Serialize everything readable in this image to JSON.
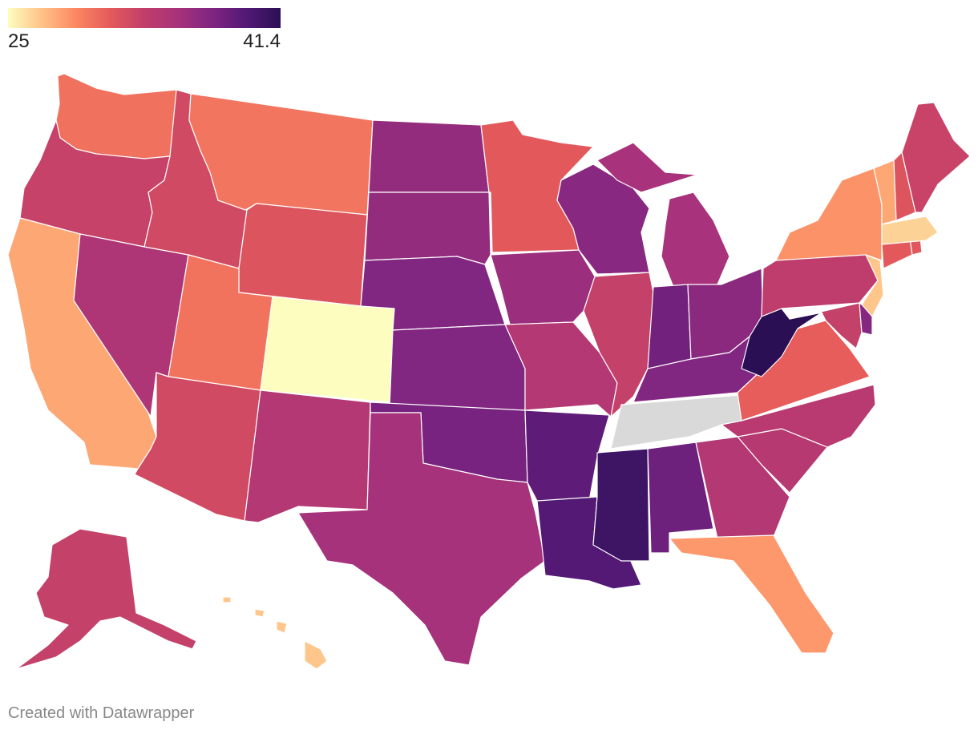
{
  "legend": {
    "min_label": "25",
    "max_label": "41.4",
    "min": 25,
    "max": 41.4,
    "gradient_colors": [
      "#fcfdbf",
      "#fec287",
      "#fb8761",
      "#e45a5b",
      "#c13e6a",
      "#a7327b",
      "#7f2581",
      "#521975",
      "#2b0f55"
    ],
    "no_data_color": "#d9d9d9"
  },
  "credit": "Created with Datawrapper",
  "states": [
    {
      "name": "Washington",
      "value": 30.1
    },
    {
      "name": "Oregon",
      "value": 32.9
    },
    {
      "name": "California",
      "value": 28.0
    },
    {
      "name": "Nevada",
      "value": 34.6
    },
    {
      "name": "Idaho",
      "value": 32.3
    },
    {
      "name": "Montana",
      "value": 29.9
    },
    {
      "name": "Wyoming",
      "value": 31.6
    },
    {
      "name": "Utah",
      "value": 30.0
    },
    {
      "name": "Colorado",
      "value": 25.0
    },
    {
      "name": "Arizona",
      "value": 32.3
    },
    {
      "name": "New Mexico",
      "value": 34.3
    },
    {
      "name": "North Dakota",
      "value": 36.2
    },
    {
      "name": "South Dakota",
      "value": 36.2
    },
    {
      "name": "Nebraska",
      "value": 37.2
    },
    {
      "name": "Kansas",
      "value": 37.2
    },
    {
      "name": "Oklahoma",
      "value": 37.6
    },
    {
      "name": "Texas",
      "value": 35.3
    },
    {
      "name": "Minnesota",
      "value": 31.2
    },
    {
      "name": "Iowa",
      "value": 35.8
    },
    {
      "name": "Missouri",
      "value": 34.3
    },
    {
      "name": "Arkansas",
      "value": 38.8
    },
    {
      "name": "Louisiana",
      "value": 39.3
    },
    {
      "name": "Wisconsin",
      "value": 36.8
    },
    {
      "name": "Illinois",
      "value": 33.0
    },
    {
      "name": "Michigan",
      "value": 35.2
    },
    {
      "name": "Indiana",
      "value": 37.9
    },
    {
      "name": "Ohio",
      "value": 36.7
    },
    {
      "name": "Kentucky",
      "value": 37.2
    },
    {
      "name": "Tennessee",
      "value": null
    },
    {
      "name": "Mississippi",
      "value": 40.4
    },
    {
      "name": "Alabama",
      "value": 38.1
    },
    {
      "name": "Georgia",
      "value": 34.3
    },
    {
      "name": "Florida",
      "value": 28.5
    },
    {
      "name": "South Carolina",
      "value": 34.1
    },
    {
      "name": "North Carolina",
      "value": 33.9
    },
    {
      "name": "Virginia",
      "value": 31.0
    },
    {
      "name": "West Virginia",
      "value": 41.4
    },
    {
      "name": "Maryland",
      "value": 33.0
    },
    {
      "name": "Delaware",
      "value": 37.0
    },
    {
      "name": "Pennsylvania",
      "value": 33.4
    },
    {
      "name": "New Jersey",
      "value": 26.9
    },
    {
      "name": "New York",
      "value": 28.7
    },
    {
      "name": "Connecticut",
      "value": 31.2
    },
    {
      "name": "Rhode Island",
      "value": 31.4
    },
    {
      "name": "Massachusetts",
      "value": 26.5
    },
    {
      "name": "Vermont",
      "value": 28.0
    },
    {
      "name": "New Hampshire",
      "value": 31.6
    },
    {
      "name": "Maine",
      "value": 32.8
    },
    {
      "name": "Alaska",
      "value": 33.0
    },
    {
      "name": "Hawaii",
      "value": 26.9
    }
  ]
}
